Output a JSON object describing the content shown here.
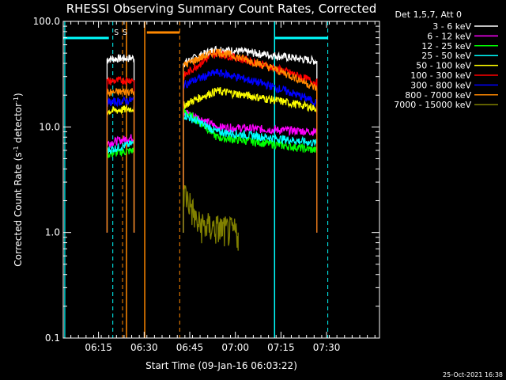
{
  "chart_data": {
    "type": "line",
    "title": "RHESSI Observing Summary Count Rates, Corrected",
    "xlabel": "Start Time (09-Jan-16 06:03:22)",
    "ylabel": "Corrected Count Rate (s⁻¹ detector⁻¹)",
    "ylabel_parts": {
      "main": "Corrected Count Rate (s",
      "sup1": "-1",
      "mid": " detector",
      "sup2": "-1",
      "end": ")"
    },
    "y_scale": "log",
    "ylim": [
      0.1,
      100
    ],
    "xlim_minutes": [
      0,
      104
    ],
    "x_ticks": [
      {
        "label": "06:15",
        "min": 11.6
      },
      {
        "label": "06:30",
        "min": 26.6
      },
      {
        "label": "06:45",
        "min": 41.6
      },
      {
        "label": "07:00",
        "min": 56.6
      },
      {
        "label": "07:15",
        "min": 71.6
      },
      {
        "label": "07:30",
        "min": 86.6
      }
    ],
    "y_ticks": [
      {
        "label": "100.0",
        "value": 100
      },
      {
        "label": "10.0",
        "value": 10
      },
      {
        "label": "1.0",
        "value": 1
      },
      {
        "label": "0.1",
        "value": 0.1
      }
    ],
    "legend_title": "Det 1,5,7, Att 0",
    "legend_position": "outside-right",
    "series": [
      {
        "name": "3 - 6 keV",
        "color": "#ffffff",
        "seg1": [
          44,
          45
        ],
        "seg2": [
          40,
          55,
          42
        ]
      },
      {
        "name": "6 - 12 keV",
        "color": "#ff00ff",
        "seg1": [
          7,
          8
        ],
        "seg2": [
          14,
          10,
          9
        ]
      },
      {
        "name": "12 - 25 keV",
        "color": "#00ff00",
        "seg1": [
          5.5,
          6
        ],
        "seg2": [
          14,
          8,
          6
        ]
      },
      {
        "name": "25 - 50 keV",
        "color": "#00ffff",
        "seg1": [
          6,
          7
        ],
        "seg2": [
          13,
          9,
          7
        ]
      },
      {
        "name": "50 - 100 keV",
        "color": "#ffff00",
        "seg1": [
          14,
          15
        ],
        "seg2": [
          16,
          22,
          15
        ]
      },
      {
        "name": "100 - 300 keV",
        "color": "#ff0000",
        "seg1": [
          27,
          28
        ],
        "seg2": [
          30,
          50,
          26
        ]
      },
      {
        "name": "300 - 800 keV",
        "color": "#0000ff",
        "seg1": [
          17,
          18
        ],
        "seg2": [
          25,
          33,
          17
        ]
      },
      {
        "name": "800 - 7000 keV",
        "color": "#ff8800",
        "seg1": [
          21,
          22
        ],
        "seg2": [
          38,
          52,
          23
        ]
      },
      {
        "name": "7000 - 15000 keV",
        "color": "#808000",
        "seg1": [],
        "seg2": [
          2.5,
          1.2,
          1.0
        ]
      }
    ],
    "annotations": [
      {
        "text": "S",
        "color": "#ff8800",
        "min": 17.5
      },
      {
        "text": "S",
        "color": "#ff8800",
        "min": 20.3
      }
    ],
    "footer_date": "25-Oct-2021 16:38"
  }
}
